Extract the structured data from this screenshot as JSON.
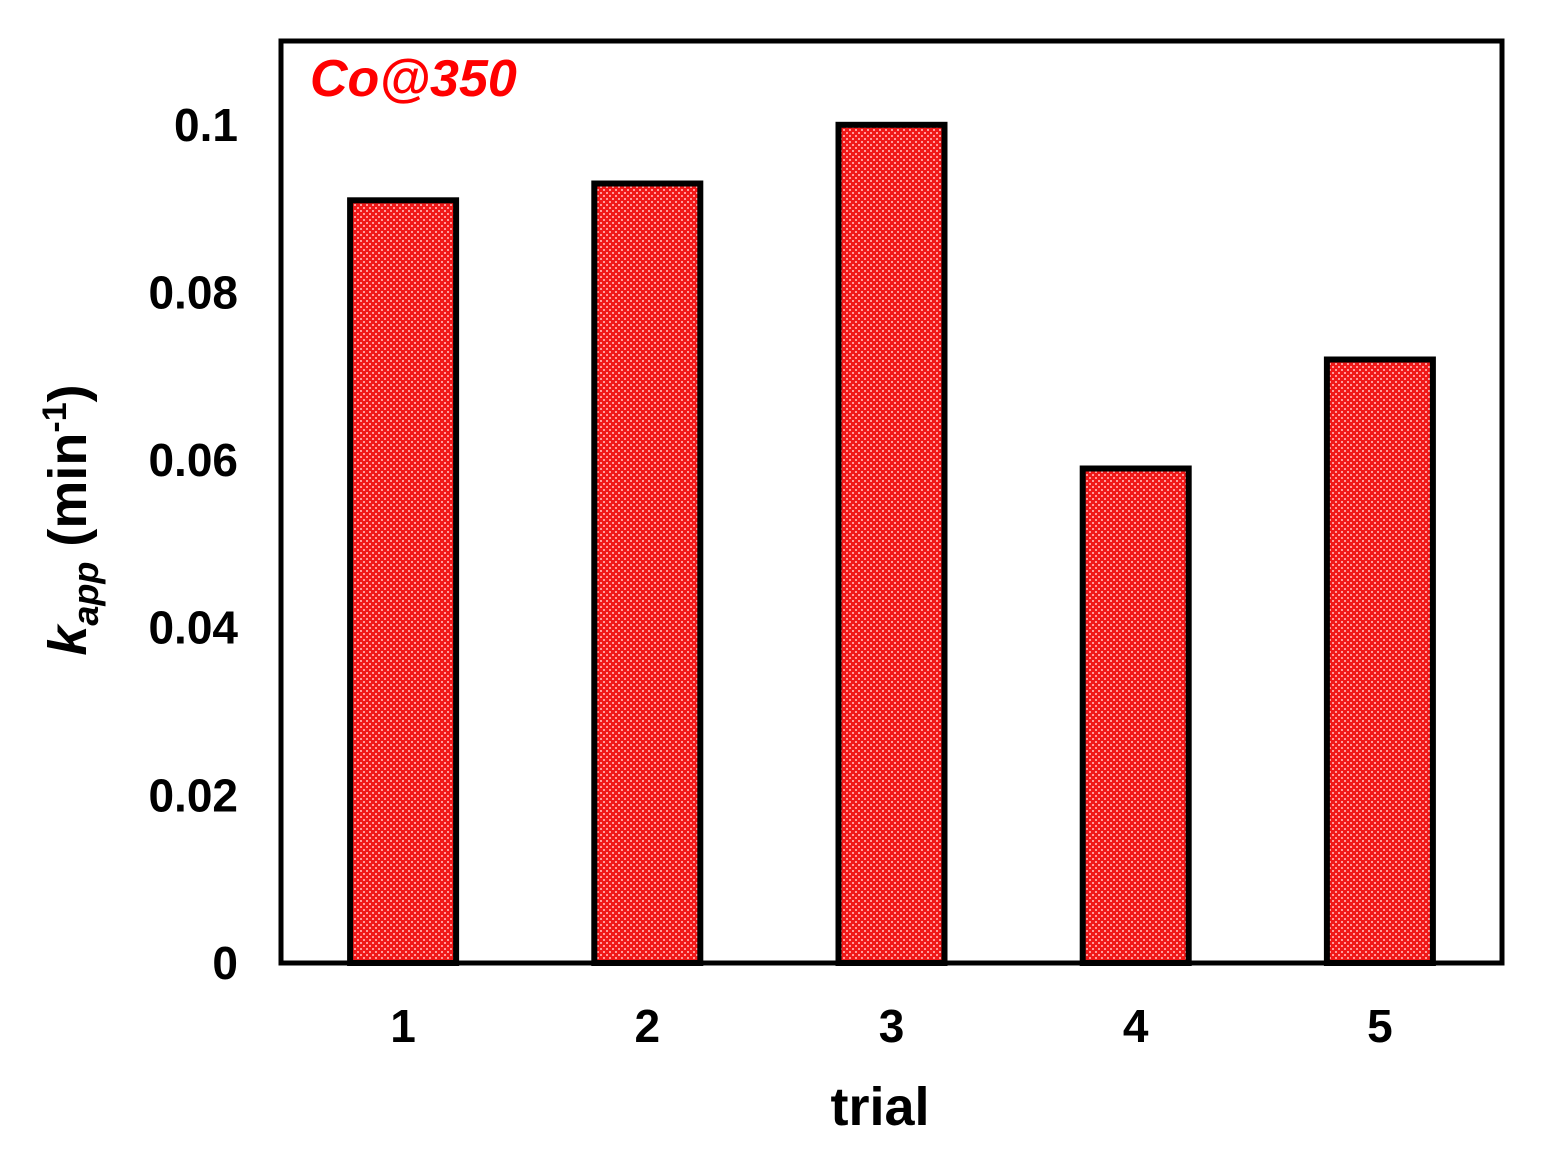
{
  "chart_data": {
    "type": "bar",
    "categories": [
      "1",
      "2",
      "3",
      "4",
      "5"
    ],
    "values": [
      0.091,
      0.093,
      0.1,
      0.059,
      0.072
    ],
    "title": "",
    "xlabel": "trial",
    "ylabel": {
      "main": "k",
      "subscript": "app",
      "unit_open": " (min",
      "unit_sup": "-1",
      "unit_close": ")"
    },
    "ylim": [
      0,
      0.11
    ],
    "yticks": [
      0,
      0.02,
      0.04,
      0.06,
      0.08,
      0.1
    ],
    "ytick_labels": [
      "0",
      "0.02",
      "0.04",
      "0.06",
      "0.08",
      "0.1"
    ],
    "annotation": "Co@350",
    "grid": false,
    "legend": "none",
    "colors": {
      "bar_fill": "#f01818",
      "bar_stipple": "#ff9a9a",
      "bar_edge": "#000000",
      "annotation": "#ff0000"
    }
  }
}
